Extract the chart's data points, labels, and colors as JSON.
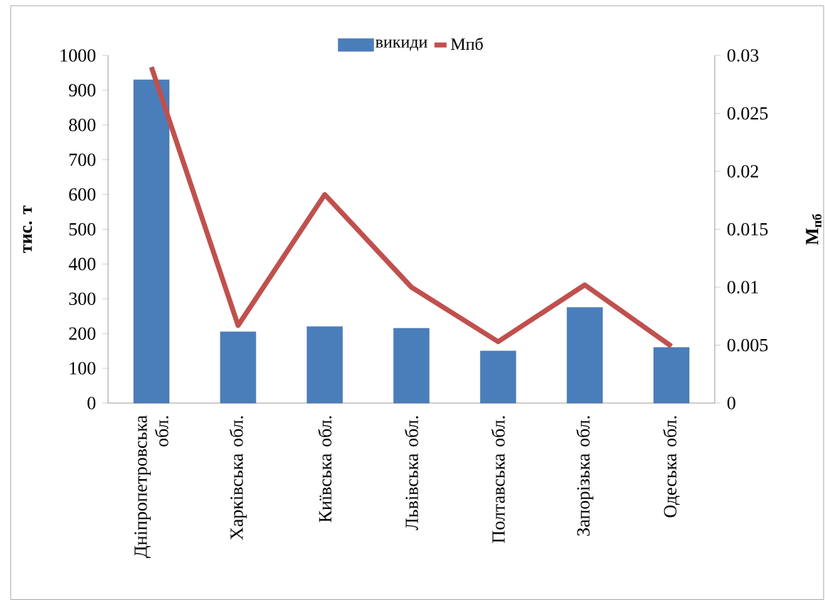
{
  "chart_data": {
    "type": "bar",
    "categories": [
      "Дніпропетровська обл.",
      "Харківська обл.",
      "Київська обл.",
      "Львівська обл.",
      "Полтавська обл.",
      "Запорізька обл.",
      "Одеська обл."
    ],
    "ylabel": "тис. т",
    "y2label": "М$_{пб}$",
    "ylim": [
      0,
      1000
    ],
    "yticks": [
      0,
      100,
      200,
      300,
      400,
      500,
      600,
      700,
      800,
      900,
      1000
    ],
    "y2lim": [
      0,
      0.03
    ],
    "y2ticks": [
      0,
      0.005,
      0.01,
      0.015,
      0.02,
      0.025,
      0.03
    ],
    "legend": "top",
    "marker": "none",
    "series": [
      {
        "name": "викиди",
        "color": "#4a7ebb",
        "values": [
          930,
          205,
          220,
          215,
          150,
          275,
          160
        ]
      },
      {
        "name": "Мпб",
        "type": "line",
        "axis": "y2",
        "color": "#c0504d",
        "values": [
          0.029,
          0.0067,
          0.018,
          0.01,
          0.0053,
          0.0102,
          0.0049
        ]
      }
    ]
  }
}
